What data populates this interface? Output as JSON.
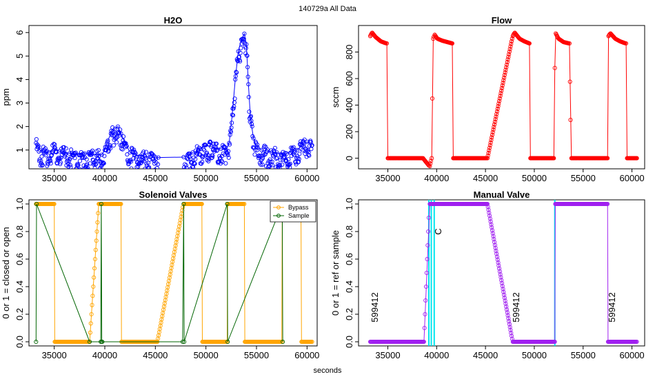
{
  "figure": {
    "suptitle": "140729a   All Data",
    "xlabel": "seconds"
  },
  "chart_data": [
    {
      "id": "h2o",
      "type": "scatter",
      "title": "H2O",
      "ylabel": "ppm",
      "xlim": [
        32500,
        61000
      ],
      "ylim": [
        0.2,
        6.3
      ],
      "xticks": [
        35000,
        40000,
        45000,
        50000,
        55000,
        60000
      ],
      "yticks": [
        1,
        2,
        3,
        4,
        5,
        6
      ],
      "color": "#0000ff",
      "x": [
        33200,
        33600,
        34000,
        34500,
        35000,
        35500,
        36000,
        36500,
        37000,
        37500,
        38000,
        38500,
        39700,
        40000,
        40300,
        40600,
        41000,
        41300,
        41600,
        42000,
        42500,
        43000,
        43500,
        44000,
        44500,
        45000,
        45300,
        47800,
        48200,
        48700,
        49200,
        49500,
        49800,
        50500,
        51000,
        51500,
        52000,
        52300,
        52600,
        52900,
        53200,
        53500,
        53800,
        54000,
        54200,
        54400,
        54700,
        55000,
        55500,
        56000,
        56500,
        57000,
        57500,
        58000,
        58500,
        59000,
        59500,
        60000,
        60500
      ],
      "y": [
        1.3,
        1.0,
        0.95,
        0.9,
        1.1,
        0.95,
        0.9,
        0.85,
        0.85,
        0.8,
        0.85,
        0.8,
        0.8,
        1.0,
        1.4,
        1.7,
        1.9,
        2.0,
        1.7,
        1.3,
        0.9,
        0.8,
        0.75,
        0.72,
        0.7,
        0.7,
        0.68,
        0.7,
        0.8,
        0.9,
        0.95,
        1.05,
        1.2,
        1.15,
        1.1,
        1.05,
        1.0,
        1.3,
        2.5,
        4.0,
        5.2,
        5.7,
        5.95,
        5.5,
        3.8,
        2.4,
        1.5,
        1.15,
        1.0,
        0.95,
        0.9,
        0.9,
        0.8,
        0.85,
        0.95,
        1.0,
        1.2,
        1.35,
        1.2
      ],
      "connect_gap": [
        45300,
        47800
      ]
    },
    {
      "id": "flow",
      "type": "line",
      "title": "Flow",
      "ylabel": "sccm",
      "xlim": [
        32000,
        61300
      ],
      "ylim": [
        -80,
        1000
      ],
      "xticks": [
        35000,
        40000,
        45000,
        50000,
        55000,
        60000
      ],
      "yticks": [
        0,
        200,
        400,
        600,
        800
      ],
      "color": "#ff0000",
      "x": [
        33200,
        33400,
        33800,
        34300,
        34900,
        35000,
        35200,
        36000,
        37000,
        38000,
        38600,
        39300,
        39500,
        39650,
        39800,
        40100,
        40600,
        41100,
        41600,
        41700,
        42500,
        43500,
        44500,
        45200,
        47800,
        48000,
        48500,
        49000,
        49500,
        49600,
        50500,
        51500,
        52000,
        52100,
        52200,
        52500,
        53000,
        53600,
        53800,
        54500,
        55500,
        56500,
        57500,
        57600,
        57800,
        58300,
        58800,
        59400,
        59500,
        60000,
        60500
      ],
      "y": [
        920,
        945,
        910,
        880,
        865,
        0,
        0,
        0,
        0,
        0,
        0,
        -60,
        0,
        900,
        930,
        900,
        885,
        875,
        865,
        0,
        0,
        0,
        0,
        0,
        920,
        945,
        900,
        880,
        865,
        0,
        0,
        0,
        0,
        680,
        940,
        900,
        875,
        865,
        0,
        0,
        0,
        0,
        0,
        920,
        940,
        900,
        880,
        865,
        0,
        0,
        0
      ]
    },
    {
      "id": "solenoid",
      "type": "line",
      "title": "Solenoid Valves",
      "ylabel": "0 or 1 = closed or open",
      "xlim": [
        32500,
        61000
      ],
      "ylim": [
        -0.03,
        1.03
      ],
      "xticks": [
        35000,
        40000,
        45000,
        50000,
        55000,
        60000
      ],
      "yticks": [
        0.0,
        0.2,
        0.4,
        0.6,
        0.8,
        1.0
      ],
      "legend": {
        "position": "top-right"
      },
      "series": [
        {
          "name": "Bypass",
          "color": "#ffa500",
          "x": [
            33200,
            35000,
            35050,
            38500,
            39400,
            39800,
            39850,
            41600,
            41650,
            45200,
            47800,
            49600,
            49650,
            52100,
            52150,
            53800,
            53850,
            57500,
            57550,
            59400,
            59450,
            60500
          ],
          "y": [
            1,
            1,
            0,
            0,
            1,
            1,
            1,
            1,
            0,
            0,
            1,
            1,
            0,
            0,
            1,
            1,
            0,
            0,
            1,
            1,
            0,
            0
          ]
        },
        {
          "name": "Sample",
          "color": "#006400",
          "x": [
            33200,
            33250,
            38500,
            39600,
            39650,
            39700,
            39750,
            47700,
            47800,
            47850,
            52100,
            52150,
            57550,
            57600
          ],
          "y": [
            0,
            1,
            0,
            0,
            1,
            0,
            0,
            0,
            1,
            0,
            1,
            0,
            1,
            0
          ]
        }
      ]
    },
    {
      "id": "manual",
      "type": "line",
      "title": "Manual Valve",
      "ylabel": "0 or 1 = ref or sample",
      "xlim": [
        32000,
        61300
      ],
      "ylim": [
        -0.03,
        1.03
      ],
      "xticks": [
        35000,
        40000,
        45000,
        50000,
        55000,
        60000
      ],
      "yticks": [
        0.0,
        0.2,
        0.4,
        0.6,
        0.8,
        1.0
      ],
      "color": "#a020f0",
      "x": [
        33200,
        38700,
        39300,
        39800,
        45200,
        47800,
        52100,
        52150,
        57500,
        57550,
        60500
      ],
      "y": [
        0,
        0,
        1,
        1,
        1,
        0,
        0,
        1,
        1,
        0,
        0
      ],
      "vlines": {
        "color": "#00e5ee",
        "x": [
          39200,
          39450,
          39750,
          52100
        ]
      },
      "annotations": [
        {
          "text": "599412",
          "x": 33400,
          "y": 0.25,
          "color": "#00cc00"
        },
        {
          "text": "599412",
          "x": 47900,
          "y": 0.25,
          "color": "#00cc00"
        },
        {
          "text": "599412",
          "x": 57700,
          "y": 0.25,
          "color": "#00cc00"
        },
        {
          "text": "C",
          "x": 39900,
          "y": 0.8,
          "color": "#00e5ee"
        }
      ]
    }
  ]
}
